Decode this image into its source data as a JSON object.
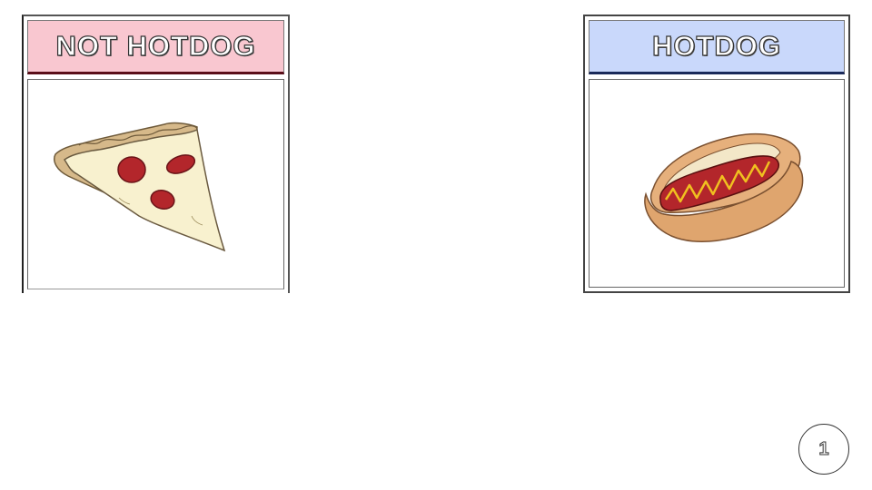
{
  "cards": [
    {
      "label": "NOT HOTDOG",
      "header_color": "#f9c7d0",
      "image": "pizza-slice"
    },
    {
      "label": "HOTDOG",
      "header_color": "#c9d8fb",
      "image": "hotdog"
    }
  ],
  "page_number": "1"
}
